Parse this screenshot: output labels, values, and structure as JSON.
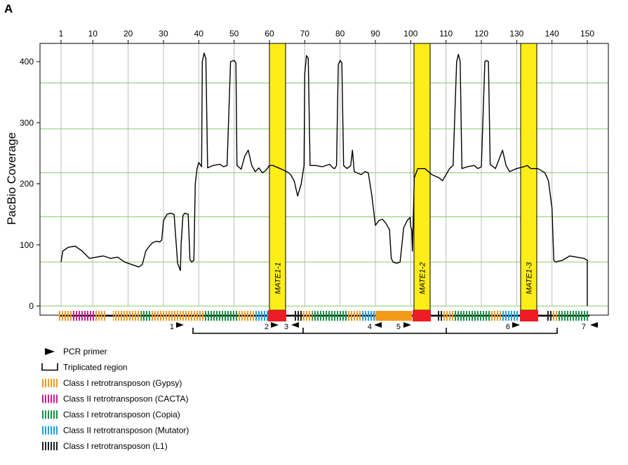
{
  "panel_label": "A",
  "chart_data": {
    "type": "line",
    "ylabel": "PacBio Coverage",
    "xlim": [
      1,
      150
    ],
    "ylim": [
      0,
      420
    ],
    "x_ticks": [
      "1",
      "10",
      "20",
      "30",
      "40",
      "50",
      "60",
      "70",
      "80",
      "90",
      "100",
      "110",
      "120",
      "130",
      "140",
      "150"
    ],
    "y_ticks": [
      "0",
      "100",
      "200",
      "300",
      "400"
    ],
    "series": [
      {
        "points": [
          [
            1,
            72
          ],
          [
            1.5,
            90
          ],
          [
            3,
            96
          ],
          [
            5,
            98
          ],
          [
            7,
            90
          ],
          [
            9,
            78
          ],
          [
            11,
            80
          ],
          [
            13,
            82
          ],
          [
            15,
            78
          ],
          [
            17,
            80
          ],
          [
            19,
            72
          ],
          [
            21,
            68
          ],
          [
            23,
            64
          ],
          [
            24,
            68
          ],
          [
            25,
            90
          ],
          [
            26,
            98
          ],
          [
            27,
            104
          ],
          [
            28,
            106
          ],
          [
            29,
            105
          ],
          [
            29.5,
            108
          ],
          [
            30,
            140
          ],
          [
            31,
            150
          ],
          [
            32,
            152
          ],
          [
            33,
            150
          ],
          [
            33.5,
            110
          ],
          [
            34,
            70
          ],
          [
            34.8,
            58
          ],
          [
            35,
            100
          ],
          [
            35.5,
            148
          ],
          [
            36,
            152
          ],
          [
            37,
            150
          ],
          [
            37.5,
            76
          ],
          [
            38,
            72
          ],
          [
            38.6,
            75
          ],
          [
            39,
            200
          ],
          [
            39.5,
            225
          ],
          [
            40,
            235
          ],
          [
            40.8,
            228
          ],
          [
            41,
            400
          ],
          [
            41.5,
            414
          ],
          [
            42,
            405
          ],
          [
            42.5,
            226
          ],
          [
            44,
            230
          ],
          [
            46,
            232
          ],
          [
            47,
            228
          ],
          [
            48,
            230
          ],
          [
            49,
            400
          ],
          [
            50,
            402
          ],
          [
            50.5,
            398
          ],
          [
            50.8,
            230
          ],
          [
            52,
            224
          ],
          [
            53,
            245
          ],
          [
            54,
            255
          ],
          [
            55,
            230
          ],
          [
            56,
            220
          ],
          [
            57,
            226
          ],
          [
            58,
            218
          ],
          [
            59,
            222
          ],
          [
            60,
            230
          ],
          [
            61,
            230
          ],
          [
            63,
            225
          ],
          [
            65,
            220
          ],
          [
            66,
            215
          ],
          [
            67,
            205
          ],
          [
            68,
            180
          ],
          [
            69,
            200
          ],
          [
            69.8,
            230
          ],
          [
            70,
            380
          ],
          [
            70.5,
            410
          ],
          [
            71,
            405
          ],
          [
            71.5,
            230
          ],
          [
            73,
            230
          ],
          [
            75,
            228
          ],
          [
            77,
            232
          ],
          [
            78,
            226
          ],
          [
            78.5,
            225
          ],
          [
            79,
            230
          ],
          [
            79.5,
            395
          ],
          [
            80,
            402
          ],
          [
            80.5,
            398
          ],
          [
            81,
            230
          ],
          [
            82,
            225
          ],
          [
            83,
            230
          ],
          [
            83.5,
            255
          ],
          [
            84,
            220
          ],
          [
            86,
            215
          ],
          [
            87,
            220
          ],
          [
            88,
            218
          ],
          [
            89,
            180
          ],
          [
            90,
            132
          ],
          [
            91,
            140
          ],
          [
            92,
            142
          ],
          [
            93,
            135
          ],
          [
            94,
            125
          ],
          [
            94.5,
            78
          ],
          [
            95,
            72
          ],
          [
            96,
            70
          ],
          [
            97,
            72
          ],
          [
            98,
            128
          ],
          [
            99,
            140
          ],
          [
            99.8,
            145
          ],
          [
            100,
            130
          ],
          [
            100.3,
            125
          ],
          [
            100.5,
            90
          ],
          [
            101,
            210
          ],
          [
            102,
            225
          ],
          [
            104,
            225
          ],
          [
            106,
            215
          ],
          [
            108,
            210
          ],
          [
            109,
            205
          ],
          [
            110,
            215
          ],
          [
            111,
            225
          ],
          [
            112,
            230
          ],
          [
            113,
            400
          ],
          [
            113.5,
            412
          ],
          [
            114,
            400
          ],
          [
            114.5,
            225
          ],
          [
            116,
            228
          ],
          [
            118,
            230
          ],
          [
            119,
            225
          ],
          [
            120,
            228
          ],
          [
            121,
            400
          ],
          [
            121.5,
            402
          ],
          [
            122,
            400
          ],
          [
            122.5,
            232
          ],
          [
            124,
            225
          ],
          [
            125,
            240
          ],
          [
            126,
            255
          ],
          [
            127,
            230
          ],
          [
            128,
            220
          ],
          [
            130,
            225
          ],
          [
            132,
            228
          ],
          [
            133,
            230
          ],
          [
            134,
            225
          ],
          [
            136,
            225
          ],
          [
            138,
            218
          ],
          [
            139,
            205
          ],
          [
            140,
            160
          ],
          [
            140.5,
            75
          ],
          [
            141,
            72
          ],
          [
            143,
            75
          ],
          [
            145,
            82
          ],
          [
            147,
            80
          ],
          [
            149,
            78
          ],
          [
            150,
            75
          ],
          [
            150,
            0
          ]
        ]
      }
    ]
  },
  "highlight_labels": [
    "MATE1-1",
    "MATE1-2",
    "MATE1-3"
  ],
  "primer_labels": [
    "1",
    "2",
    "3",
    "4",
    "5",
    "6",
    "7"
  ],
  "legend": [
    {
      "label": "PCR primer",
      "kind": "primer"
    },
    {
      "label": "Triplicated region",
      "kind": "bracket"
    },
    {
      "label": "Class I retrotransposon (Gypsy)",
      "kind": "hatch",
      "color": "#f39a1b"
    },
    {
      "label": "Class II retrotransposon (CACTA)",
      "kind": "hatch",
      "color": "#cf1b97"
    },
    {
      "label": "Class I retrotransposon (Copia)",
      "kind": "hatch",
      "color": "#119546"
    },
    {
      "label": "Class II retrotransposon (Mutator)",
      "kind": "hatch",
      "color": "#1aa3e6"
    },
    {
      "label": "Class I retrotransposon (L1)",
      "kind": "hatch",
      "color": "#222222"
    }
  ],
  "colors": {
    "gypsy": "#f39a1b",
    "cacta": "#cf1b97",
    "copia": "#119546",
    "mutator": "#1aa3e6",
    "l1": "#222222",
    "highlight": "#ffed1a",
    "mate_box": "#ee1c25",
    "h_grid": "#86c96a",
    "v_grid": "#bdbdbd"
  }
}
